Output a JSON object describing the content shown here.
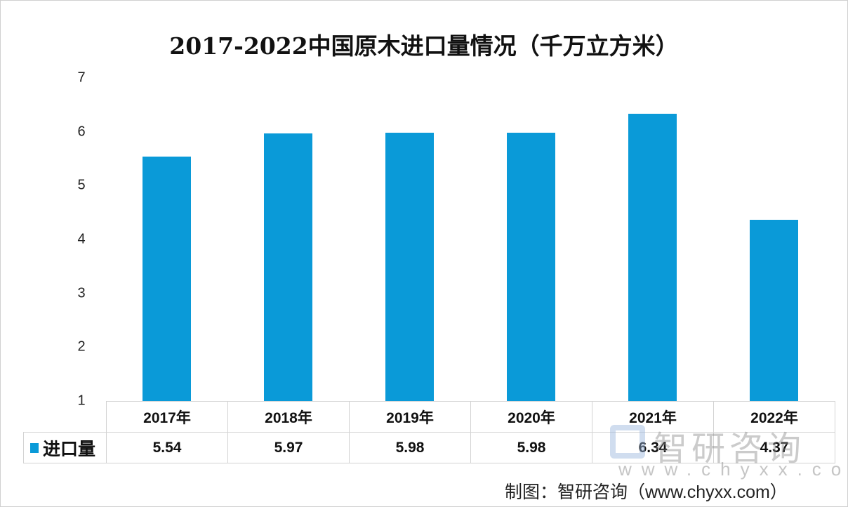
{
  "chart_data": {
    "type": "bar",
    "title": "2017-2022中国原木进口量情况（千万立方米）",
    "categories": [
      "2017年",
      "2018年",
      "2019年",
      "2020年",
      "2021年",
      "2022年"
    ],
    "series": [
      {
        "name": "进口量",
        "values": [
          5.54,
          5.97,
          5.98,
          5.98,
          6.34,
          4.37
        ]
      }
    ],
    "value_labels": [
      "5.54",
      "5.97",
      "5.98",
      "5.98",
      "6.34",
      "4.37"
    ],
    "yticks": [
      "1",
      "2",
      "3",
      "4",
      "5",
      "6",
      "7"
    ],
    "ylim": [
      1,
      7
    ],
    "xlabel": "",
    "ylabel": "",
    "legend": "data-table-left",
    "color": "#0a9ad8"
  },
  "watermark": {
    "name": "智研咨询",
    "url": "www.chyxx.com"
  },
  "source": "制图：智研咨询（www.chyxx.com）"
}
